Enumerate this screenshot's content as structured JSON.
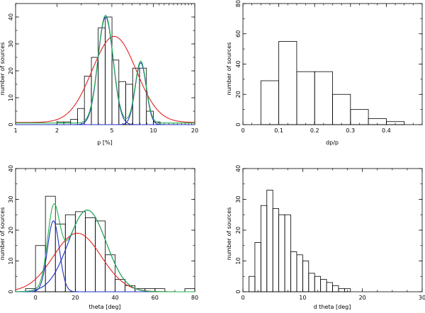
{
  "chart_data": [
    {
      "type": "bar",
      "xlabel": "p [%]",
      "ylabel": "number of sources",
      "x_scale": "log",
      "xlim": [
        1,
        20
      ],
      "ylim": [
        0,
        45
      ],
      "xticks": [
        1,
        2,
        5,
        10,
        20
      ],
      "yticks": [
        0,
        10,
        20,
        30,
        40
      ],
      "grid": false,
      "bin_edges": [
        2.0,
        2.24,
        2.51,
        2.82,
        3.16,
        3.55,
        3.98,
        4.47,
        5.01,
        5.62,
        6.31,
        7.08,
        7.94,
        8.91,
        10.0,
        11.22
      ],
      "values": [
        1,
        1,
        2,
        6,
        18,
        25,
        36,
        40,
        24,
        16,
        15,
        21,
        21,
        5,
        1
      ],
      "curves": [
        {
          "color": "#e0221e",
          "kind": "gaussian",
          "center": 5.2,
          "amplitude": 32,
          "sigma_log10": 0.16,
          "base": 0.8
        },
        {
          "color": "#1f2fc0",
          "kind": "gaussian",
          "center": 4.5,
          "amplitude": 40,
          "sigma_log10": 0.055
        },
        {
          "color": "#1f2fc0",
          "kind": "gaussian",
          "center": 8.1,
          "amplitude": 23,
          "sigma_log10": 0.04
        },
        {
          "color": "#22b14c",
          "kind": "sum",
          "of": [
            1,
            2
          ],
          "base": 0.6
        }
      ]
    },
    {
      "type": "bar",
      "xlabel": "dp/p",
      "ylabel": "number of sources",
      "xlim": [
        0,
        0.5
      ],
      "ylim": [
        0,
        80
      ],
      "xticks": [
        0,
        0.1,
        0.2,
        0.3,
        0.4
      ],
      "yticks": [
        0,
        20,
        40,
        60,
        80
      ],
      "grid": false,
      "bin_edges": [
        0.05,
        0.1,
        0.15,
        0.2,
        0.25,
        0.3,
        0.35,
        0.4,
        0.45
      ],
      "values": [
        29,
        55,
        35,
        35,
        20,
        10,
        4,
        2
      ]
    },
    {
      "type": "bar",
      "xlabel": "theta [deg]",
      "ylabel": "number of sources",
      "xlim": [
        -10,
        80
      ],
      "ylim": [
        0,
        40
      ],
      "xticks": [
        0,
        20,
        40,
        60,
        80
      ],
      "yticks": [
        0,
        10,
        20,
        30,
        40
      ],
      "grid": false,
      "bin_edges": [
        -5,
        0,
        5,
        10,
        15,
        20,
        25,
        30,
        35,
        40,
        45,
        50,
        55,
        60,
        65,
        70,
        75,
        80
      ],
      "values": [
        1,
        15,
        31,
        22,
        25,
        26,
        24,
        23,
        12,
        4,
        2,
        1,
        1,
        1,
        0,
        0,
        1
      ],
      "curves": [
        {
          "color": "#e0221e",
          "kind": "gaussian",
          "center": 21,
          "amplitude": 19,
          "sigma": 12
        },
        {
          "color": "#1f2fc0",
          "kind": "gaussian",
          "center": 9,
          "amplitude": 23,
          "sigma": 3
        },
        {
          "color": "#1f2fc0",
          "kind": "gaussian",
          "center": 26,
          "amplitude": 26.5,
          "sigma": 9.5
        },
        {
          "color": "#22b14c",
          "kind": "sum",
          "of": [
            1,
            2
          ]
        }
      ]
    },
    {
      "type": "bar",
      "xlabel": "d theta [deg]",
      "ylabel": "number of sources",
      "xlim": [
        0,
        30
      ],
      "ylim": [
        0,
        40
      ],
      "xticks": [
        0,
        10,
        20,
        30
      ],
      "yticks": [
        0,
        10,
        20,
        30,
        40
      ],
      "grid": false,
      "bin_edges": [
        1,
        2,
        3,
        4,
        5,
        6,
        7,
        8,
        9,
        10,
        11,
        12,
        13,
        14,
        15,
        16,
        17,
        18,
        19,
        20,
        21,
        22,
        23,
        24,
        25
      ],
      "values": [
        5,
        16,
        28,
        33,
        27,
        25,
        25,
        13,
        12,
        10,
        6,
        5,
        4,
        3,
        2,
        1,
        1,
        0,
        0,
        0,
        0,
        0,
        0,
        0
      ]
    }
  ]
}
